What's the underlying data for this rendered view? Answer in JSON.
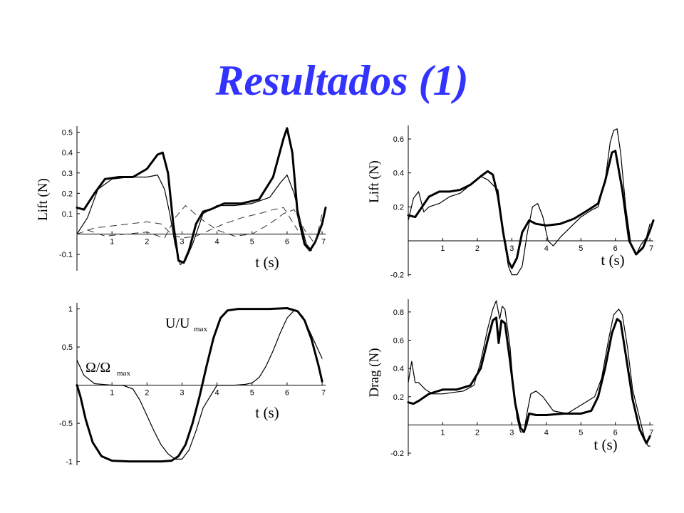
{
  "slide": {
    "title": "Resultados (1)"
  },
  "colors": {
    "title": "#3333ff",
    "line": "#000000"
  },
  "chart_data": [
    {
      "type": "line",
      "ylabel": "Lift (N)",
      "xlabel": "t (s)",
      "xlim": [
        0,
        7.1
      ],
      "ylim": [
        -0.18,
        0.53
      ],
      "xticks": [
        1,
        2,
        3,
        4,
        5,
        6,
        7
      ],
      "yticks": [
        -0.1,
        0.1,
        0.2,
        0.3,
        0.4,
        0.5
      ],
      "grid": false,
      "series": [
        {
          "style": "thick",
          "x": [
            0,
            0.2,
            0.5,
            0.8,
            1.2,
            1.6,
            2.0,
            2.3,
            2.45,
            2.6,
            2.75,
            2.9,
            3.05,
            3.2,
            3.4,
            3.6,
            3.8,
            4.2,
            4.7,
            5.2,
            5.6,
            5.9,
            6.0,
            6.15,
            6.3,
            6.5,
            6.65,
            6.8,
            7.0,
            7.1
          ],
          "y": [
            0.13,
            0.12,
            0.2,
            0.27,
            0.28,
            0.28,
            0.32,
            0.39,
            0.4,
            0.3,
            0.05,
            -0.13,
            -0.14,
            -0.08,
            0.05,
            0.11,
            0.12,
            0.15,
            0.15,
            0.17,
            0.28,
            0.47,
            0.52,
            0.4,
            0.1,
            -0.05,
            -0.08,
            -0.04,
            0.05,
            0.13
          ]
        },
        {
          "style": "thin",
          "x": [
            0,
            0.3,
            0.6,
            1.0,
            1.5,
            2.0,
            2.3,
            2.5,
            2.65,
            2.8,
            2.95,
            3.1,
            3.3,
            3.6,
            4.0,
            4.5,
            5.0,
            5.5,
            5.8,
            6.0,
            6.2,
            6.4,
            6.55,
            6.7
          ],
          "y": [
            0.0,
            0.08,
            0.22,
            0.27,
            0.28,
            0.28,
            0.29,
            0.22,
            0.1,
            -0.05,
            -0.15,
            -0.13,
            -0.05,
            0.1,
            0.14,
            0.14,
            0.15,
            0.18,
            0.25,
            0.29,
            0.2,
            0.05,
            -0.05,
            -0.08
          ]
        },
        {
          "style": "dashed",
          "x": [
            0,
            0.5,
            1.0,
            1.5,
            2.0,
            2.4,
            2.7,
            3.0,
            3.4,
            3.8,
            4.2,
            4.7,
            5.2,
            5.6,
            5.9,
            6.3
          ],
          "y": [
            0.0,
            0.03,
            0.04,
            0.05,
            0.06,
            0.05,
            0.0,
            -0.02,
            -0.01,
            0.02,
            0.05,
            0.08,
            0.1,
            0.12,
            0.13,
            0.02
          ]
        },
        {
          "style": "dashed",
          "x": [
            0.3,
            0.8,
            1.4,
            2.0,
            2.5,
            2.8,
            3.1,
            3.5,
            4.0,
            4.5,
            5.0,
            5.5,
            5.9,
            6.2,
            6.5,
            6.8,
            7.0
          ],
          "y": [
            0.02,
            -0.01,
            0.0,
            0.01,
            -0.02,
            0.08,
            0.14,
            0.08,
            0.02,
            -0.01,
            0.0,
            0.05,
            0.1,
            0.12,
            0.02,
            -0.05,
            0.1
          ]
        }
      ]
    },
    {
      "type": "line",
      "ylabel": "",
      "xlabel": "t (s)",
      "xlim": [
        0,
        7.1
      ],
      "ylim": [
        -1.05,
        1.08
      ],
      "xticks": [
        1,
        2,
        3,
        4,
        5,
        6,
        7
      ],
      "yticks": [
        -1,
        -0.5,
        0.5,
        1
      ],
      "grid": false,
      "annotations": [
        {
          "text": "U/U",
          "sub": "max"
        },
        {
          "text": "Ω/Ω",
          "sub": "max"
        }
      ],
      "series": [
        {
          "name": "U/Umax",
          "style": "thick",
          "x": [
            0,
            0.1,
            0.25,
            0.45,
            0.7,
            1.0,
            1.5,
            2.0,
            2.4,
            2.7,
            2.9,
            3.1,
            3.3,
            3.5,
            3.7,
            3.9,
            4.1,
            4.3,
            4.6,
            5.0,
            5.5,
            6.0,
            6.3,
            6.5,
            6.7,
            6.9,
            7.0
          ],
          "y": [
            0,
            -0.15,
            -0.45,
            -0.75,
            -0.93,
            -0.99,
            -1.0,
            -1.0,
            -1.0,
            -0.99,
            -0.93,
            -0.78,
            -0.5,
            -0.15,
            0.25,
            0.62,
            0.88,
            0.98,
            1.0,
            1.0,
            1.0,
            1.01,
            0.97,
            0.85,
            0.6,
            0.25,
            0.05
          ]
        },
        {
          "name": "Ω/Ωmax",
          "style": "thin",
          "x": [
            0,
            0.2,
            0.5,
            1.0,
            1.3,
            1.6,
            1.8,
            2.0,
            2.2,
            2.4,
            2.6,
            2.8,
            3.0,
            3.2,
            3.4,
            3.6,
            4.0,
            4.5,
            4.8,
            5.0,
            5.2,
            5.4,
            5.6,
            5.8,
            6.0,
            6.2,
            6.3,
            6.45,
            6.6,
            6.8,
            7.0
          ],
          "y": [
            0.33,
            0.13,
            0.02,
            0.0,
            0.0,
            -0.05,
            -0.2,
            -0.4,
            -0.6,
            -0.78,
            -0.9,
            -0.97,
            -0.97,
            -0.85,
            -0.6,
            -0.3,
            0.0,
            0.0,
            0.01,
            0.03,
            0.1,
            0.25,
            0.45,
            0.68,
            0.88,
            0.98,
            0.97,
            0.9,
            0.75,
            0.55,
            0.35
          ]
        }
      ]
    },
    {
      "type": "line",
      "ylabel": "Lift (N)",
      "xlabel": "t (s)",
      "xlim": [
        0,
        7.1
      ],
      "ylim": [
        -0.21,
        0.68
      ],
      "xticks": [
        1,
        2,
        3,
        4,
        5,
        6,
        7
      ],
      "yticks": [
        -0.2,
        0.2,
        0.4,
        0.6
      ],
      "grid": false,
      "series": [
        {
          "style": "thick",
          "x": [
            0,
            0.2,
            0.4,
            0.6,
            0.9,
            1.2,
            1.5,
            1.8,
            2.1,
            2.3,
            2.45,
            2.6,
            2.75,
            2.9,
            3.0,
            3.15,
            3.3,
            3.5,
            3.7,
            4.0,
            4.4,
            4.8,
            5.2,
            5.5,
            5.7,
            5.9,
            6.0,
            6.2,
            6.4,
            6.6,
            6.8,
            7.0,
            7.1
          ],
          "y": [
            0.15,
            0.14,
            0.2,
            0.26,
            0.29,
            0.29,
            0.3,
            0.33,
            0.38,
            0.41,
            0.39,
            0.26,
            0.05,
            -0.12,
            -0.16,
            -0.1,
            0.05,
            0.12,
            0.1,
            0.09,
            0.1,
            0.13,
            0.18,
            0.22,
            0.35,
            0.52,
            0.53,
            0.3,
            0.0,
            -0.08,
            -0.04,
            0.06,
            0.12
          ]
        },
        {
          "style": "thin",
          "x": [
            0,
            0.15,
            0.3,
            0.45,
            0.6,
            0.9,
            1.2,
            1.5,
            1.8,
            2.1,
            2.3,
            2.45,
            2.6,
            2.75,
            2.9,
            3.0,
            3.15,
            3.3,
            3.45,
            3.6,
            3.75,
            3.9,
            4.05,
            4.2,
            4.4,
            4.7,
            5.0,
            5.3,
            5.5,
            5.7,
            5.85,
            5.95,
            6.05,
            6.15,
            6.3,
            6.45,
            6.6,
            6.75,
            6.9,
            7.0
          ],
          "y": [
            0.12,
            0.25,
            0.29,
            0.17,
            0.2,
            0.22,
            0.26,
            0.28,
            0.33,
            0.38,
            0.36,
            0.33,
            0.3,
            0.05,
            -0.15,
            -0.2,
            -0.2,
            -0.15,
            0.05,
            0.2,
            0.22,
            0.14,
            0.0,
            -0.03,
            0.02,
            0.08,
            0.14,
            0.18,
            0.2,
            0.35,
            0.58,
            0.65,
            0.66,
            0.52,
            0.2,
            -0.02,
            -0.08,
            -0.02,
            0.02,
            0.1
          ]
        }
      ]
    },
    {
      "type": "line",
      "ylabel": "Drag (N)",
      "xlabel": "t (s)",
      "xlim": [
        0,
        7.1
      ],
      "ylim": [
        -0.22,
        0.89
      ],
      "xticks": [
        1,
        2,
        3,
        4,
        5,
        6,
        7
      ],
      "yticks": [
        -0.2,
        0.2,
        0.4,
        0.6,
        0.8
      ],
      "grid": false,
      "series": [
        {
          "style": "thick",
          "x": [
            0,
            0.15,
            0.3,
            0.6,
            1.0,
            1.4,
            1.8,
            2.1,
            2.3,
            2.45,
            2.55,
            2.62,
            2.7,
            2.8,
            2.95,
            3.1,
            3.25,
            3.35,
            3.42,
            3.5,
            3.7,
            4.0,
            4.5,
            5.0,
            5.3,
            5.5,
            5.7,
            5.9,
            6.05,
            6.15,
            6.3,
            6.5,
            6.7,
            6.9,
            7.0
          ],
          "y": [
            0.16,
            0.15,
            0.17,
            0.22,
            0.25,
            0.25,
            0.28,
            0.4,
            0.6,
            0.74,
            0.76,
            0.58,
            0.74,
            0.72,
            0.45,
            0.15,
            -0.02,
            -0.05,
            0.0,
            0.08,
            0.07,
            0.07,
            0.08,
            0.08,
            0.1,
            0.2,
            0.4,
            0.65,
            0.75,
            0.73,
            0.5,
            0.18,
            -0.03,
            -0.13,
            -0.08
          ]
        },
        {
          "style": "thin",
          "x": [
            0,
            0.1,
            0.2,
            0.3,
            0.5,
            0.7,
            1.0,
            1.3,
            1.6,
            1.9,
            2.1,
            2.3,
            2.45,
            2.55,
            2.65,
            2.72,
            2.8,
            2.95,
            3.05,
            3.15,
            3.25,
            3.35,
            3.45,
            3.55,
            3.7,
            3.9,
            4.2,
            4.6,
            5.0,
            5.4,
            5.6,
            5.8,
            5.95,
            6.1,
            6.2,
            6.35,
            6.5,
            6.7,
            6.85,
            6.95,
            7.0
          ],
          "y": [
            0.3,
            0.45,
            0.3,
            0.3,
            0.25,
            0.22,
            0.22,
            0.23,
            0.24,
            0.28,
            0.45,
            0.68,
            0.82,
            0.88,
            0.75,
            0.84,
            0.82,
            0.55,
            0.25,
            0.05,
            -0.05,
            -0.05,
            0.1,
            0.22,
            0.24,
            0.2,
            0.1,
            0.08,
            0.14,
            0.2,
            0.33,
            0.6,
            0.78,
            0.82,
            0.78,
            0.55,
            0.25,
            0.05,
            -0.1,
            -0.15,
            -0.15
          ]
        }
      ]
    }
  ]
}
